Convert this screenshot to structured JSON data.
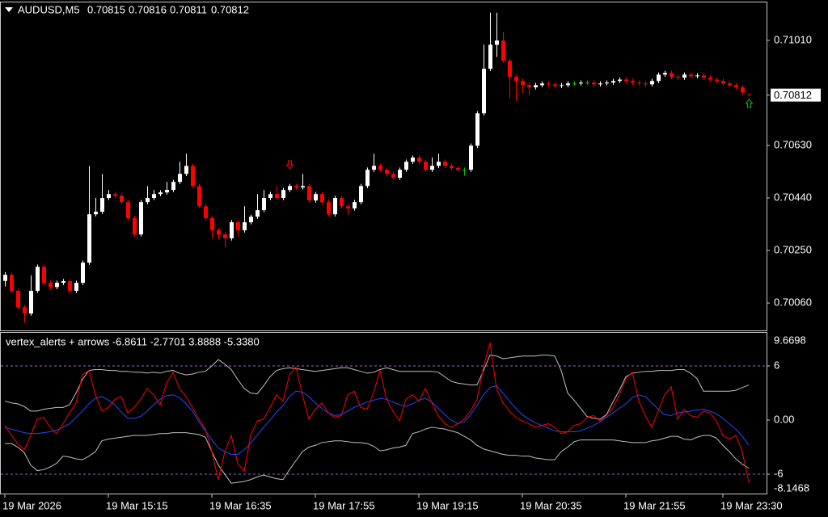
{
  "chart_data": [
    {
      "type": "candlestick",
      "title": "AUDUSD,M5",
      "categories": [
        "19 Mar 2026",
        null,
        null,
        null,
        null,
        null,
        null,
        null,
        null,
        null,
        null,
        null,
        null,
        null,
        null,
        null,
        "19 Mar 15:15",
        null,
        null,
        null,
        null,
        null,
        null,
        null,
        null,
        null,
        null,
        null,
        null,
        null,
        null,
        null,
        "19 Mar 16:35",
        null,
        null,
        null,
        null,
        null,
        null,
        null,
        null,
        null,
        null,
        null,
        null,
        null,
        null,
        null,
        "19 Mar 17:55",
        null,
        null,
        null,
        null,
        null,
        null,
        null,
        null,
        null,
        null,
        null,
        null,
        null,
        null,
        null,
        "19 Mar 19:15",
        null,
        null,
        null,
        null,
        null,
        null,
        null,
        null,
        null,
        null,
        null,
        null,
        null,
        null,
        null,
        "19 Mar 20:35",
        null,
        null,
        null,
        null,
        null,
        null,
        null,
        null,
        null,
        null,
        null,
        null,
        null,
        null,
        null,
        "19 Mar 21:55",
        null,
        null,
        null,
        null,
        null,
        null,
        null,
        null,
        null,
        null,
        null,
        null,
        null,
        null,
        "19 Mar 23:30",
        null,
        null,
        null,
        null
      ],
      "open": [
        0.7014,
        0.70162,
        0.70104,
        0.70045,
        0.70022,
        0.70104,
        0.70191,
        0.70133,
        0.70118,
        0.70133,
        0.70139,
        0.70104,
        0.70133,
        0.70206,
        0.70381,
        0.7039,
        0.7044,
        0.70454,
        0.70448,
        0.70425,
        0.70367,
        0.70308,
        0.70425,
        0.7044,
        0.70454,
        0.7046,
        0.70469,
        0.70498,
        0.70527,
        0.70556,
        0.70483,
        0.7041,
        0.70367,
        0.70323,
        0.70308,
        0.70294,
        0.70352,
        0.70323,
        0.70352,
        0.70372,
        0.70396,
        0.7044,
        0.70454,
        0.7044,
        0.70469,
        0.70483,
        0.70478,
        0.70483,
        0.70431,
        0.70454,
        0.70425,
        0.70381,
        0.7044,
        0.7041,
        0.70402,
        0.70425,
        0.70483,
        0.70542,
        0.70556,
        0.70542,
        0.70527,
        0.70513,
        0.70542,
        0.70571,
        0.70586,
        0.70571,
        0.70542,
        0.70556,
        0.70571,
        0.70556,
        0.70548,
        0.70542,
        0.70542,
        0.70629,
        0.70746,
        0.70907,
        0.70994,
        0.71009,
        0.70936,
        0.70878,
        0.70863,
        0.70848,
        0.7084,
        0.70848,
        0.70854,
        0.70851,
        0.70845,
        0.70848,
        0.70854,
        0.70854,
        0.70857,
        0.70857,
        0.70851,
        0.70854,
        0.70857,
        0.70863,
        0.70868,
        0.70863,
        0.70857,
        0.70854,
        0.70851,
        0.70863,
        0.70886,
        0.70892,
        0.70878,
        0.70875,
        0.70886,
        0.7088,
        0.70883,
        0.70875,
        0.70868,
        0.70863,
        0.70854,
        0.70848,
        0.7084,
        0.70815
      ],
      "high": [
        0.70172,
        0.7017,
        0.70112,
        0.70053,
        0.7016,
        0.70199,
        0.70199,
        0.70141,
        0.70141,
        0.70147,
        0.70147,
        0.70141,
        0.70214,
        0.70556,
        0.7044,
        0.70527,
        0.70469,
        0.70462,
        0.70456,
        0.70433,
        0.70375,
        0.70433,
        0.70483,
        0.70469,
        0.70468,
        0.70498,
        0.70506,
        0.70571,
        0.706,
        0.70564,
        0.70491,
        0.70418,
        0.70375,
        0.70331,
        0.70316,
        0.7036,
        0.7036,
        0.7041,
        0.7038,
        0.70454,
        0.70469,
        0.70462,
        0.70483,
        0.70477,
        0.70491,
        0.70491,
        0.70527,
        0.70491,
        0.70462,
        0.70462,
        0.70433,
        0.70448,
        0.70448,
        0.70418,
        0.70433,
        0.70491,
        0.7055,
        0.706,
        0.70564,
        0.7055,
        0.70535,
        0.7055,
        0.70579,
        0.70594,
        0.70594,
        0.70579,
        0.70586,
        0.706,
        0.70579,
        0.70564,
        0.70556,
        0.7055,
        0.70637,
        0.70754,
        0.70994,
        0.7111,
        0.7111,
        0.7104,
        0.70944,
        0.70886,
        0.70871,
        0.70856,
        0.70856,
        0.70862,
        0.70862,
        0.70859,
        0.70856,
        0.70862,
        0.70862,
        0.70865,
        0.70865,
        0.70865,
        0.70862,
        0.70865,
        0.70871,
        0.70876,
        0.70876,
        0.70871,
        0.70865,
        0.70862,
        0.70871,
        0.70894,
        0.709,
        0.709,
        0.70886,
        0.70894,
        0.70894,
        0.70891,
        0.70891,
        0.70883,
        0.70876,
        0.70871,
        0.70862,
        0.70856,
        0.70848,
        0.70816
      ],
      "low": [
        0.7012,
        0.70096,
        0.70037,
        0.6999,
        0.70014,
        0.70096,
        0.70125,
        0.7011,
        0.7011,
        0.70125,
        0.70096,
        0.70096,
        0.70125,
        0.70198,
        0.70373,
        0.70382,
        0.70432,
        0.7044,
        0.70417,
        0.70359,
        0.703,
        0.703,
        0.70417,
        0.70432,
        0.70446,
        0.70452,
        0.70461,
        0.7049,
        0.70519,
        0.70475,
        0.70402,
        0.70359,
        0.70294,
        0.7029,
        0.7026,
        0.70286,
        0.703,
        0.70315,
        0.70344,
        0.70364,
        0.70388,
        0.70432,
        0.70432,
        0.70432,
        0.70461,
        0.7047,
        0.7047,
        0.70423,
        0.70423,
        0.70417,
        0.70373,
        0.70373,
        0.70402,
        0.7038,
        0.70394,
        0.70417,
        0.70475,
        0.70534,
        0.70534,
        0.70519,
        0.70505,
        0.70505,
        0.70534,
        0.70563,
        0.70563,
        0.70534,
        0.70534,
        0.70548,
        0.70548,
        0.7054,
        0.70534,
        0.7052,
        0.70534,
        0.70621,
        0.70738,
        0.70899,
        0.7095,
        0.70928,
        0.708,
        0.7079,
        0.7082,
        0.7081,
        0.70832,
        0.7084,
        0.70843,
        0.70837,
        0.70837,
        0.7084,
        0.70846,
        0.70846,
        0.70849,
        0.70843,
        0.70843,
        0.70846,
        0.70849,
        0.70855,
        0.70855,
        0.70849,
        0.70846,
        0.70843,
        0.70843,
        0.70855,
        0.70878,
        0.7087,
        0.70867,
        0.70867,
        0.70872,
        0.70872,
        0.70867,
        0.7086,
        0.70855,
        0.70846,
        0.7084,
        0.70832,
        0.70814,
        0.70811
      ],
      "close": [
        0.70162,
        0.70104,
        0.70045,
        0.70022,
        0.70104,
        0.70191,
        0.70133,
        0.70118,
        0.70133,
        0.70139,
        0.70104,
        0.70133,
        0.70206,
        0.70381,
        0.7039,
        0.7044,
        0.70454,
        0.70448,
        0.70425,
        0.70367,
        0.70308,
        0.70425,
        0.7044,
        0.70454,
        0.7046,
        0.70469,
        0.70498,
        0.70527,
        0.70556,
        0.70483,
        0.7041,
        0.70367,
        0.70323,
        0.70308,
        0.70294,
        0.70352,
        0.70323,
        0.70352,
        0.70372,
        0.70396,
        0.7044,
        0.70454,
        0.7044,
        0.70469,
        0.70483,
        0.70478,
        0.70483,
        0.70431,
        0.70454,
        0.70425,
        0.70381,
        0.7044,
        0.7041,
        0.70402,
        0.70425,
        0.70483,
        0.70542,
        0.70556,
        0.70542,
        0.70527,
        0.70513,
        0.70542,
        0.70571,
        0.70586,
        0.70571,
        0.70542,
        0.70556,
        0.70571,
        0.70556,
        0.70548,
        0.70542,
        0.70542,
        0.70629,
        0.70746,
        0.70907,
        0.70994,
        0.71009,
        0.70936,
        0.70878,
        0.70863,
        0.70848,
        0.7084,
        0.70848,
        0.70854,
        0.70851,
        0.70845,
        0.70848,
        0.70854,
        0.70854,
        0.70857,
        0.70857,
        0.70851,
        0.70854,
        0.70857,
        0.70863,
        0.70868,
        0.70863,
        0.70857,
        0.70854,
        0.70851,
        0.70863,
        0.70886,
        0.70892,
        0.70878,
        0.70875,
        0.70886,
        0.7088,
        0.70883,
        0.70875,
        0.70868,
        0.70863,
        0.70854,
        0.70848,
        0.7084,
        0.70822,
        0.70812
      ],
      "bull_color": "#ffffff",
      "bear_color": "#ff0000",
      "doji_color": "#00c000",
      "signals": [
        {
          "candle": 44,
          "price": 0.7056,
          "direction": "down",
          "color": "#ff0000"
        },
        {
          "candle": 115,
          "price": 0.70782,
          "direction": "up",
          "color": "#00c000"
        }
      ],
      "ylim": [
        0.69961,
        0.7115
      ],
      "yticks": [
        {
          "value": 0.7006,
          "label": "0.70060"
        },
        {
          "value": 0.7025,
          "label": "0.70250"
        },
        {
          "value": 0.7044,
          "label": "0.70440"
        },
        {
          "value": 0.7063,
          "label": "0.70630"
        },
        {
          "value": 0.7101,
          "label": "0.71010"
        }
      ]
    },
    {
      "type": "line",
      "label": "vertex_alerts + arrows -6.8611 -2.7701 3.8888 -5.3380",
      "ylim": [
        -8.1468,
        9.6698
      ],
      "yticks": [
        6,
        {
          "value": 0,
          "label": "0.00"
        },
        -6
      ],
      "levels": [
        6,
        -6
      ],
      "level_color": "#9966cc",
      "series": [
        {
          "color": "#c0c0c0",
          "values": [
            2.1,
            1.9,
            1.8,
            1.5,
            1.0,
            1.0,
            1.2,
            1.3,
            1.4,
            1.4,
            1.7,
            3.0,
            4.5,
            5.5,
            5.6,
            5.6,
            5.5,
            5.5,
            5.4,
            5.4,
            5.3,
            5.3,
            5.2,
            5.3,
            5.2,
            5.4,
            5.5,
            5.2,
            5.0,
            5.1,
            5.3,
            5.4,
            6.0,
            6.7,
            6.2,
            5.6,
            4.5,
            3.5,
            3.0,
            2.9,
            3.8,
            4.8,
            5.5,
            5.7,
            5.8,
            5.7,
            5.6,
            5.5,
            5.4,
            5.5,
            5.6,
            5.7,
            5.8,
            5.8,
            5.6,
            5.4,
            5.2,
            5.3,
            5.6,
            5.8,
            5.6,
            5.4,
            5.4,
            5.4,
            5.4,
            5.4,
            5.4,
            5.3,
            4.8,
            4.3,
            4.1,
            4.0,
            3.9,
            3.9,
            5.5,
            7.2,
            7.1,
            6.8,
            6.9,
            7.0,
            7.1,
            7.1,
            7.1,
            7.2,
            7.2,
            7.1,
            5.5,
            3.0,
            2.2,
            1.3,
            0.4,
            0.2,
            0.1,
            0.6,
            2.0,
            3.3,
            4.8,
            5.2,
            5.3,
            5.4,
            5.4,
            5.5,
            5.5,
            5.5,
            5.6,
            5.6,
            5.2,
            4.6,
            3.2,
            3.2,
            3.2,
            3.2,
            3.2,
            3.3,
            3.6,
            3.8888
          ]
        },
        {
          "color": "#c0c0c0",
          "values": [
            -2.6,
            -2.6,
            -3.0,
            -3.6,
            -5.0,
            -5.6,
            -5.5,
            -5.2,
            -4.8,
            -4.0,
            -4.1,
            -4.3,
            -4.4,
            -4.0,
            -3.5,
            -2.3,
            -2.1,
            -2.0,
            -1.9,
            -1.8,
            -1.7,
            -1.7,
            -1.7,
            -1.6,
            -1.5,
            -1.5,
            -1.4,
            -1.4,
            -1.4,
            -1.5,
            -1.6,
            -1.9,
            -3.5,
            -5.0,
            -6.0,
            -7.0,
            -6.9,
            -6.8,
            -6.6,
            -6.3,
            -6.1,
            -6.3,
            -6.5,
            -6.6,
            -5.5,
            -4.5,
            -3.5,
            -3.0,
            -2.8,
            -2.5,
            -2.4,
            -2.3,
            -2.3,
            -2.4,
            -2.5,
            -2.5,
            -2.6,
            -2.9,
            -3.4,
            -3.3,
            -3.1,
            -3.0,
            -2.8,
            -1.5,
            -1.3,
            -1.0,
            -0.8,
            -0.9,
            -1.0,
            -1.2,
            -1.4,
            -1.8,
            -2.2,
            -2.8,
            -3.2,
            -3.4,
            -3.6,
            -3.8,
            -3.9,
            -3.9,
            -4.0,
            -4.0,
            -4.2,
            -4.3,
            -4.4,
            -4.4,
            -3.5,
            -3.0,
            -2.4,
            -2.2,
            -2.2,
            -2.2,
            -2.2,
            -2.2,
            -2.2,
            -2.3,
            -2.4,
            -2.5,
            -2.5,
            -2.5,
            -2.3,
            -2.2,
            -2.0,
            -1.8,
            -1.8,
            -2.1,
            -2.2,
            -1.9,
            -1.7,
            -1.7,
            -2.0,
            -2.8,
            -3.5,
            -4.3,
            -4.9,
            -5.338
          ]
        },
        {
          "color": "#2846ff",
          "values": [
            -0.8,
            -1.0,
            -1.2,
            -1.4,
            -1.5,
            -1.5,
            -1.4,
            -1.3,
            -1.1,
            -0.8,
            -0.4,
            0.3,
            1.0,
            1.8,
            2.4,
            2.6,
            2.2,
            1.7,
            0.9,
            0.2,
            0.2,
            0.4,
            1.0,
            1.7,
            2.3,
            2.7,
            2.8,
            2.5,
            1.8,
            1.0,
            -0.2,
            -1.2,
            -2.2,
            -3.1,
            -3.5,
            -3.8,
            -3.8,
            -3.3,
            -2.6,
            -1.7,
            -0.8,
            0.0,
            0.9,
            1.6,
            2.6,
            3.2,
            3.1,
            2.6,
            1.9,
            1.3,
            0.8,
            0.5,
            0.6,
            1.0,
            1.4,
            1.7,
            2.0,
            2.2,
            2.4,
            2.3,
            2.0,
            1.7,
            1.5,
            1.8,
            2.2,
            2.4,
            2.0,
            1.3,
            0.6,
            0.0,
            -0.4,
            -0.2,
            0.6,
            1.6,
            2.8,
            3.6,
            3.8,
            3.0,
            2.1,
            1.3,
            0.6,
            0.1,
            -0.3,
            -0.6,
            -0.9,
            -1.2,
            -1.3,
            -1.3,
            -1.3,
            -1.2,
            -0.9,
            -0.6,
            -0.2,
            0.3,
            0.8,
            1.3,
            1.8,
            2.5,
            2.8,
            2.6,
            1.9,
            1.2,
            0.6,
            0.5,
            0.8,
            0.9,
            1.0,
            1.1,
            1.2,
            1.0,
            0.7,
            0.2,
            -0.4,
            -1.0,
            -1.8,
            -2.7701
          ]
        },
        {
          "color": "#ff0000",
          "values": [
            -0.6,
            -1.7,
            -2.6,
            -3.3,
            -1.7,
            0.1,
            0.3,
            -0.8,
            -1.5,
            -0.4,
            0.8,
            1.9,
            5.0,
            5.5,
            2.8,
            1.0,
            1.4,
            2.3,
            2.6,
            0.8,
            1.4,
            2.3,
            3.5,
            2.8,
            1.7,
            4.1,
            5.3,
            3.5,
            2.6,
            1.4,
            0.1,
            -1.0,
            -3.5,
            -6.6,
            -3.5,
            -1.7,
            -4.8,
            -5.7,
            -1.7,
            -0.1,
            0.1,
            1.4,
            2.8,
            2.1,
            5.0,
            5.9,
            2.8,
            0.1,
            1.2,
            1.9,
            0.8,
            0.3,
            0.5,
            2.8,
            3.2,
            1.4,
            1.2,
            3.0,
            5.5,
            2.3,
            1.0,
            -0.1,
            2.3,
            2.8,
            2.1,
            3.5,
            1.9,
            0.5,
            -0.4,
            -0.8,
            -0.4,
            0.1,
            1.0,
            2.3,
            5.9,
            8.6,
            3.5,
            1.9,
            1.0,
            0.3,
            -0.1,
            -0.4,
            -0.8,
            -0.6,
            -0.4,
            -0.8,
            -1.5,
            -1.3,
            -0.6,
            -0.4,
            0.3,
            0.5,
            -0.1,
            0.5,
            1.4,
            2.8,
            4.6,
            5.3,
            2.1,
            0.5,
            -0.8,
            1.0,
            2.8,
            3.7,
            0.1,
            1.2,
            0.5,
            0.3,
            1.0,
            0.8,
            -0.1,
            -1.7,
            -2.1,
            -1.7,
            -3.5,
            -6.8611
          ]
        }
      ]
    }
  ]
}
